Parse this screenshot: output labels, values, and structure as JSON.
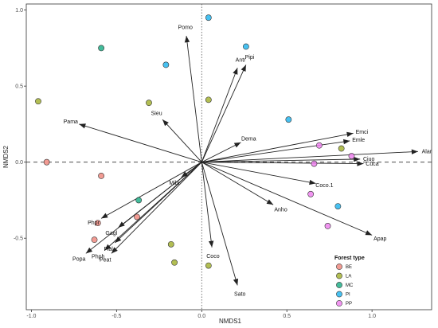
{
  "chart_data": {
    "type": "scatter",
    "title": "",
    "xlabel": "NMDS1",
    "ylabel": "NMDS2",
    "xlim": [
      -1.03,
      1.35
    ],
    "ylim": [
      -0.97,
      1.04
    ],
    "xticks": [
      -1.0,
      -0.5,
      0.0,
      0.5,
      1.0
    ],
    "xtick_labels": [
      "-1.0",
      "-0.5",
      "0.0",
      "0.5",
      "1.0"
    ],
    "yticks": [
      -0.5,
      0.0,
      0.5,
      1.0
    ],
    "ytick_labels": [
      "-0.5",
      "0.0",
      "0.5",
      "1.0"
    ],
    "grid": false,
    "reference_lines": {
      "x": 0,
      "y": 0
    },
    "legend": {
      "title": "Forest type",
      "position": "bottom-right",
      "entries": [
        {
          "label": "BE",
          "color": "#F08A80"
        },
        {
          "label": "LA",
          "color": "#A5B335"
        },
        {
          "label": "MC",
          "color": "#22B08A"
        },
        {
          "label": "PI",
          "color": "#27B6EF"
        },
        {
          "label": "PP",
          "color": "#EE82EE"
        }
      ]
    },
    "series": [
      {
        "name": "BE",
        "color": "#F08A80",
        "points": [
          [
            -0.91,
            0.0
          ],
          [
            -0.59,
            -0.09
          ],
          [
            -0.61,
            -0.4
          ],
          [
            -0.63,
            -0.51
          ],
          [
            -0.38,
            -0.36
          ]
        ]
      },
      {
        "name": "LA",
        "color": "#A5B335",
        "points": [
          [
            -0.96,
            0.4
          ],
          [
            -0.31,
            0.39
          ],
          [
            0.04,
            0.41
          ],
          [
            0.82,
            0.09
          ],
          [
            -0.18,
            -0.54
          ],
          [
            -0.16,
            -0.66
          ],
          [
            0.04,
            -0.68
          ]
        ]
      },
      {
        "name": "MC",
        "color": "#22B08A",
        "points": [
          [
            -0.59,
            0.75
          ],
          [
            -0.37,
            -0.25
          ]
        ]
      },
      {
        "name": "PI",
        "color": "#27B6EF",
        "points": [
          [
            0.04,
            0.95
          ],
          [
            -0.21,
            0.64
          ],
          [
            0.26,
            0.76
          ],
          [
            0.51,
            0.28
          ],
          [
            0.8,
            -0.29
          ]
        ]
      },
      {
        "name": "PP",
        "color": "#EE82EE",
        "points": [
          [
            0.69,
            0.11
          ],
          [
            0.66,
            -0.01
          ],
          [
            0.88,
            0.04
          ],
          [
            0.64,
            -0.21
          ],
          [
            0.74,
            -0.42
          ]
        ]
      }
    ],
    "vectors": [
      {
        "label": "Pomo",
        "x": -0.09,
        "y": 0.83
      },
      {
        "label": "Antr",
        "x": 0.21,
        "y": 0.62
      },
      {
        "label": "Pipi",
        "x": 0.26,
        "y": 0.64
      },
      {
        "label": "Pama",
        "x": -0.72,
        "y": 0.25
      },
      {
        "label": "Sieu",
        "x": -0.23,
        "y": 0.28
      },
      {
        "label": "Dema",
        "x": 0.23,
        "y": 0.13
      },
      {
        "label": "Emci",
        "x": 0.89,
        "y": 0.19
      },
      {
        "label": "Emle",
        "x": 0.87,
        "y": 0.14
      },
      {
        "label": "Alar",
        "x": 1.27,
        "y": 0.07
      },
      {
        "label": "Ciuo",
        "x": 0.93,
        "y": 0.02
      },
      {
        "label": "Cuca",
        "x": 0.95,
        "y": -0.01
      },
      {
        "label": "Coco.1",
        "x": 0.67,
        "y": -0.14
      },
      {
        "label": "Anho",
        "x": 0.42,
        "y": -0.28
      },
      {
        "label": "Apap",
        "x": 1.0,
        "y": -0.48
      },
      {
        "label": "Sato",
        "x": 0.21,
        "y": -0.81
      },
      {
        "label": "Coco",
        "x": 0.06,
        "y": -0.56
      },
      {
        "label": "Mibi",
        "x": -0.12,
        "y": -0.1
      },
      {
        "label": "Phpr",
        "x": -0.59,
        "y": -0.37
      },
      {
        "label": "Gagl",
        "x": -0.49,
        "y": -0.43
      },
      {
        "label": "Fial",
        "x": -0.51,
        "y": -0.53
      },
      {
        "label": "Popa",
        "x": -0.68,
        "y": -0.6
      },
      {
        "label": "Phph",
        "x": -0.57,
        "y": -0.58
      },
      {
        "label": "Peat",
        "x": -0.53,
        "y": -0.6
      }
    ]
  }
}
